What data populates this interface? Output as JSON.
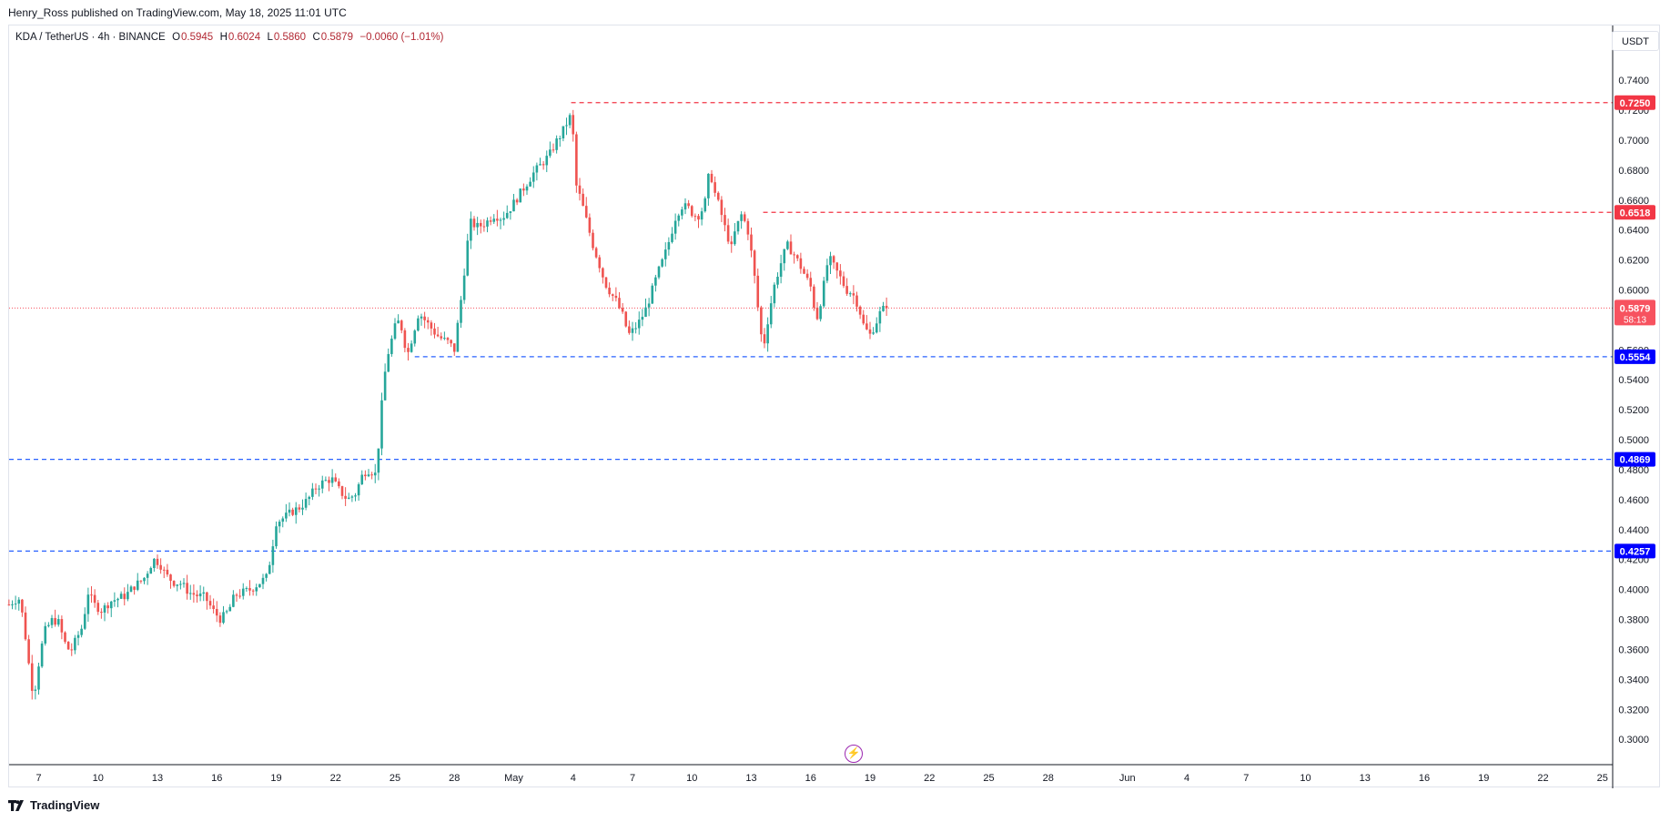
{
  "header": {
    "publisher_line": "Henry_Ross published on TradingView.com, May 18, 2025 11:01 UTC"
  },
  "legend": {
    "symbol": "KDA / TetherUS · 4h · BINANCE",
    "o_label": "O",
    "o_value": "0.5945",
    "h_label": "H",
    "h_value": "0.6024",
    "l_label": "L",
    "l_value": "0.5860",
    "c_label": "C",
    "c_value": "0.5879",
    "change": "−0.0060 (−1.01%)"
  },
  "currency_button": "USDT",
  "brand": {
    "name": "TradingView",
    "logo_icon": "tradingview-logo-icon"
  },
  "colors": {
    "up": "#26a69a",
    "down": "#ef5350",
    "candle_body_up": "#ffffff",
    "resistance": "#f23645",
    "support": "#2962ff",
    "support_label": "#0000ff",
    "current_price": "#f7525f"
  },
  "chart_data": {
    "type": "candlestick",
    "symbol": "KDA / TetherUS",
    "interval": "4h",
    "ylim": [
      0.28,
      0.755
    ],
    "y_ticks": [
      "0.7400",
      "0.7200",
      "0.7000",
      "0.6800",
      "0.6600",
      "0.6400",
      "0.6200",
      "0.6000",
      "0.5800",
      "0.5600",
      "0.5400",
      "0.5200",
      "0.5000",
      "0.4800",
      "0.4600",
      "0.4400",
      "0.4200",
      "0.4000",
      "0.3800",
      "0.3600",
      "0.3400",
      "0.3200",
      "0.3000"
    ],
    "x_ticks": [
      {
        "day": 7,
        "label": "7"
      },
      {
        "day": 10,
        "label": "10"
      },
      {
        "day": 13,
        "label": "13"
      },
      {
        "day": 16,
        "label": "16"
      },
      {
        "day": 19,
        "label": "19"
      },
      {
        "day": 22,
        "label": "22"
      },
      {
        "day": 25,
        "label": "25"
      },
      {
        "day": 28,
        "label": "28"
      },
      {
        "day": 31,
        "label": "May"
      },
      {
        "day": 34,
        "label": "4"
      },
      {
        "day": 37,
        "label": "7"
      },
      {
        "day": 40,
        "label": "10"
      },
      {
        "day": 43,
        "label": "13"
      },
      {
        "day": 46,
        "label": "16"
      },
      {
        "day": 49,
        "label": "19"
      },
      {
        "day": 52,
        "label": "22"
      },
      {
        "day": 55,
        "label": "25"
      },
      {
        "day": 58,
        "label": "28"
      },
      {
        "day": 62,
        "label": "Jun"
      },
      {
        "day": 65,
        "label": "4"
      },
      {
        "day": 68,
        "label": "7"
      },
      {
        "day": 71,
        "label": "10"
      },
      {
        "day": 74,
        "label": "13"
      },
      {
        "day": 77,
        "label": "16"
      },
      {
        "day": 80,
        "label": "19"
      },
      {
        "day": 83,
        "label": "22"
      },
      {
        "day": 86,
        "label": "25"
      }
    ],
    "levels": [
      {
        "price": 0.725,
        "label": "0.7250",
        "kind": "resistance",
        "start_day": 33.9
      },
      {
        "price": 0.6518,
        "label": "0.6518",
        "kind": "resistance",
        "start_day": 43.6
      },
      {
        "price": 0.5554,
        "label": "0.5554",
        "kind": "support",
        "start_day": 26.0
      },
      {
        "price": 0.4869,
        "label": "0.4869",
        "kind": "support",
        "start_day": 5.4
      },
      {
        "price": 0.4257,
        "label": "0.4257",
        "kind": "support",
        "start_day": 5.4
      }
    ],
    "current_price": {
      "price": 0.5879,
      "label": "0.5879",
      "countdown": "58:13"
    },
    "anchors": [
      [
        5.5,
        0.39
      ],
      [
        5.8,
        0.393
      ],
      [
        6.05,
        0.394
      ],
      [
        6.3,
        0.372
      ],
      [
        6.55,
        0.345
      ],
      [
        6.75,
        0.328
      ],
      [
        7.05,
        0.355
      ],
      [
        7.3,
        0.372
      ],
      [
        7.7,
        0.38
      ],
      [
        8.0,
        0.378
      ],
      [
        8.3,
        0.365
      ],
      [
        8.6,
        0.358
      ],
      [
        8.9,
        0.367
      ],
      [
        9.2,
        0.375
      ],
      [
        9.5,
        0.398
      ],
      [
        9.8,
        0.39
      ],
      [
        10.2,
        0.386
      ],
      [
        10.6,
        0.392
      ],
      [
        11.0,
        0.394
      ],
      [
        11.4,
        0.396
      ],
      [
        11.8,
        0.402
      ],
      [
        12.3,
        0.407
      ],
      [
        12.8,
        0.42
      ],
      [
        13.1,
        0.418
      ],
      [
        13.4,
        0.41
      ],
      [
        13.8,
        0.405
      ],
      [
        14.2,
        0.404
      ],
      [
        14.6,
        0.398
      ],
      [
        15.0,
        0.396
      ],
      [
        15.4,
        0.395
      ],
      [
        15.8,
        0.386
      ],
      [
        16.2,
        0.38
      ],
      [
        16.6,
        0.386
      ],
      [
        16.9,
        0.396
      ],
      [
        17.3,
        0.398
      ],
      [
        17.7,
        0.4
      ],
      [
        18.1,
        0.404
      ],
      [
        18.5,
        0.408
      ],
      [
        18.7,
        0.42
      ],
      [
        19.0,
        0.445
      ],
      [
        19.4,
        0.448
      ],
      [
        19.8,
        0.452
      ],
      [
        20.2,
        0.455
      ],
      [
        20.6,
        0.46
      ],
      [
        21.0,
        0.468
      ],
      [
        21.4,
        0.472
      ],
      [
        21.8,
        0.474
      ],
      [
        22.2,
        0.466
      ],
      [
        22.6,
        0.46
      ],
      [
        23.0,
        0.464
      ],
      [
        23.4,
        0.478
      ],
      [
        23.7,
        0.48
      ],
      [
        24.0,
        0.477
      ],
      [
        24.2,
        0.5
      ],
      [
        24.4,
        0.535
      ],
      [
        24.6,
        0.555
      ],
      [
        24.8,
        0.565
      ],
      [
        25.1,
        0.58
      ],
      [
        25.4,
        0.573
      ],
      [
        25.6,
        0.555
      ],
      [
        25.9,
        0.57
      ],
      [
        26.2,
        0.585
      ],
      [
        26.5,
        0.58
      ],
      [
        26.8,
        0.575
      ],
      [
        27.1,
        0.57
      ],
      [
        27.4,
        0.567
      ],
      [
        27.7,
        0.565
      ],
      [
        28.0,
        0.56
      ],
      [
        28.2,
        0.58
      ],
      [
        28.4,
        0.6
      ],
      [
        28.6,
        0.625
      ],
      [
        28.8,
        0.645
      ],
      [
        29.2,
        0.642
      ],
      [
        29.6,
        0.645
      ],
      [
        30.0,
        0.65
      ],
      [
        30.4,
        0.648
      ],
      [
        30.8,
        0.654
      ],
      [
        31.2,
        0.662
      ],
      [
        31.6,
        0.67
      ],
      [
        32.0,
        0.678
      ],
      [
        32.4,
        0.684
      ],
      [
        32.8,
        0.69
      ],
      [
        33.1,
        0.698
      ],
      [
        33.4,
        0.704
      ],
      [
        33.7,
        0.712
      ],
      [
        33.95,
        0.718
      ],
      [
        34.1,
        0.672
      ],
      [
        34.4,
        0.66
      ],
      [
        34.7,
        0.645
      ],
      [
        35.0,
        0.63
      ],
      [
        35.3,
        0.618
      ],
      [
        35.6,
        0.605
      ],
      [
        35.9,
        0.598
      ],
      [
        36.2,
        0.592
      ],
      [
        36.5,
        0.583
      ],
      [
        36.8,
        0.57
      ],
      [
        37.1,
        0.574
      ],
      [
        37.4,
        0.58
      ],
      [
        37.7,
        0.588
      ],
      [
        38.0,
        0.6
      ],
      [
        38.3,
        0.612
      ],
      [
        38.6,
        0.622
      ],
      [
        38.9,
        0.635
      ],
      [
        39.2,
        0.65
      ],
      [
        39.5,
        0.656
      ],
      [
        39.8,
        0.655
      ],
      [
        40.1,
        0.65
      ],
      [
        40.4,
        0.65
      ],
      [
        40.7,
        0.66
      ],
      [
        40.9,
        0.682
      ],
      [
        41.1,
        0.667
      ],
      [
        41.4,
        0.655
      ],
      [
        41.7,
        0.64
      ],
      [
        42.0,
        0.628
      ],
      [
        42.2,
        0.64
      ],
      [
        42.5,
        0.65
      ],
      [
        42.8,
        0.642
      ],
      [
        43.0,
        0.625
      ],
      [
        43.2,
        0.605
      ],
      [
        43.4,
        0.58
      ],
      [
        43.6,
        0.56
      ],
      [
        43.9,
        0.585
      ],
      [
        44.2,
        0.605
      ],
      [
        44.5,
        0.618
      ],
      [
        44.8,
        0.63
      ],
      [
        45.1,
        0.625
      ],
      [
        45.4,
        0.618
      ],
      [
        45.7,
        0.61
      ],
      [
        46.0,
        0.602
      ],
      [
        46.3,
        0.58
      ],
      [
        46.6,
        0.598
      ],
      [
        46.9,
        0.622
      ],
      [
        47.2,
        0.615
      ],
      [
        47.5,
        0.608
      ],
      [
        47.8,
        0.6
      ],
      [
        48.1,
        0.598
      ],
      [
        48.4,
        0.59
      ],
      [
        48.7,
        0.575
      ],
      [
        49.0,
        0.57
      ],
      [
        49.3,
        0.578
      ],
      [
        49.55,
        0.586
      ],
      [
        49.75,
        0.5879
      ]
    ]
  }
}
